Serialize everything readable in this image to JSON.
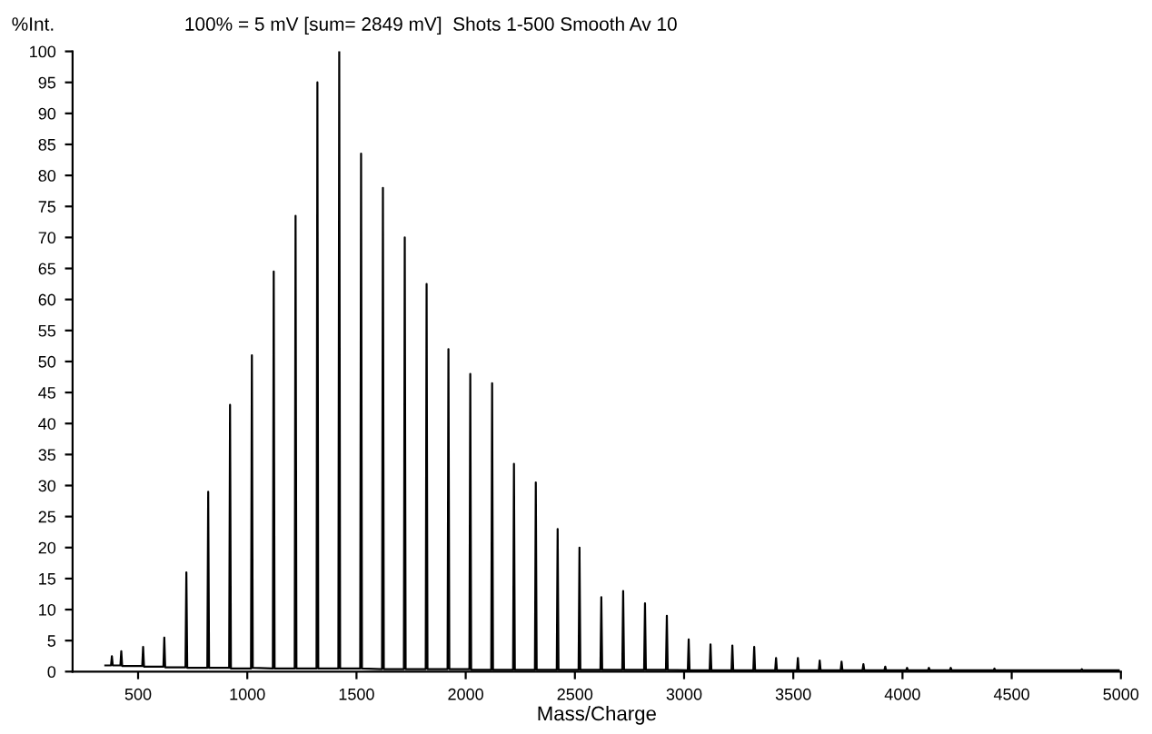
{
  "chart_data": {
    "type": "line",
    "title": "100% = 5 mV [sum= 2849 mV]  Shots 1-500 Smooth Av 10",
    "ylabel": "%Int.",
    "xlabel": "Mass/Charge",
    "x": [
      350,
      376,
      380,
      384,
      419,
      423,
      427,
      519,
      523,
      527,
      616,
      620,
      624,
      717,
      721,
      725,
      817,
      821,
      825,
      917,
      921,
      925,
      1017,
      1021,
      1025,
      1117,
      1121,
      1125,
      1217,
      1221,
      1225,
      1317,
      1321,
      1325,
      1417,
      1421,
      1425,
      1517,
      1521,
      1525,
      1617,
      1621,
      1625,
      1717,
      1721,
      1725,
      1817,
      1821,
      1825,
      1917,
      1921,
      1925,
      2017,
      2021,
      2025,
      2117,
      2121,
      2125,
      2217,
      2221,
      2225,
      2317,
      2321,
      2325,
      2417,
      2421,
      2425,
      2517,
      2521,
      2525,
      2617,
      2621,
      2625,
      2717,
      2721,
      2725,
      2817,
      2821,
      2825,
      2917,
      2921,
      2925,
      3017,
      3021,
      3025,
      3117,
      3121,
      3125,
      3217,
      3221,
      3225,
      3317,
      3321,
      3325,
      3417,
      3421,
      3425,
      3517,
      3521,
      3525,
      3617,
      3621,
      3625,
      3717,
      3721,
      3725,
      3817,
      3821,
      3825,
      3917,
      3921,
      3925,
      4017,
      4021,
      4025,
      4117,
      4121,
      4125,
      4217,
      4221,
      4225,
      4417,
      4421,
      4425,
      4817,
      4821,
      4825,
      4990
    ],
    "series": [
      {
        "color": "#000000",
        "values": [
          1.0,
          1.0,
          2.5,
          1.0,
          1.0,
          3.3,
          0.9,
          0.9,
          4,
          0.8,
          0.8,
          5.5,
          0.7,
          0.7,
          16,
          0.6,
          0.6,
          29,
          0.6,
          0.6,
          43,
          0.5,
          0.5,
          51,
          0.6,
          0.5,
          64.5,
          0.5,
          0.5,
          73.5,
          0.5,
          0.5,
          95,
          0.5,
          0.5,
          100,
          0.5,
          0.5,
          83.5,
          0.5,
          0.4,
          78,
          0.4,
          0.4,
          70,
          0.4,
          0.4,
          62.5,
          0.4,
          0.4,
          52,
          0.4,
          0.4,
          48,
          0.3,
          0.3,
          46.5,
          0.3,
          0.3,
          33.5,
          0.3,
          0.3,
          30.5,
          0.3,
          0.3,
          23,
          0.3,
          0.3,
          20,
          0.3,
          0.3,
          12,
          0.3,
          0.3,
          13,
          0.3,
          0.3,
          11,
          0.3,
          0.3,
          9,
          0.3,
          0.2,
          5.2,
          0.2,
          0.2,
          4.4,
          0.2,
          0.2,
          4.2,
          0.2,
          0.2,
          4,
          0.2,
          0.2,
          2.2,
          0.2,
          0.2,
          2.2,
          0.2,
          0.2,
          1.8,
          0.2,
          0.2,
          1.6,
          0.2,
          0.2,
          1.2,
          0.2,
          0.2,
          0.8,
          0.2,
          0.2,
          0.6,
          0.2,
          0.2,
          0.6,
          0.2,
          0.2,
          0.6,
          0.2,
          0.2,
          0.5,
          0.2,
          0.2,
          0.4,
          0.2,
          0.2
        ]
      }
    ],
    "xlim": [
      200,
      5000
    ],
    "ylim": [
      0,
      100
    ],
    "xticks": [
      500,
      1000,
      1500,
      2000,
      2500,
      3000,
      3500,
      4000,
      4500,
      5000
    ],
    "yticks": [
      0,
      5,
      10,
      15,
      20,
      25,
      30,
      35,
      40,
      45,
      50,
      55,
      60,
      65,
      70,
      75,
      80,
      85,
      90,
      95,
      100
    ],
    "grid": false,
    "legend": false
  }
}
